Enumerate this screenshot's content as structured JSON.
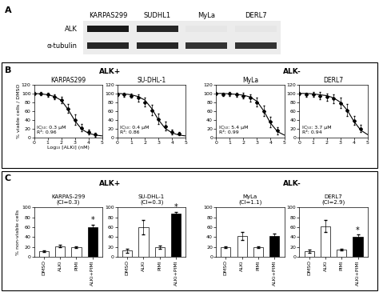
{
  "chart_data": [
    {
      "type": "scatter",
      "title": "KARPAS299",
      "x_label": "Log₁₀ [ALKi] (nM)",
      "y_label": "% viable cells / DMSO",
      "annotations": [
        "IC₅₀: 0.3 µM",
        "R²: 0.96"
      ],
      "xlim": [
        0,
        5
      ],
      "xticks": [
        0,
        1,
        2,
        3,
        4,
        5
      ],
      "ylim": [
        0,
        120
      ],
      "yticks": [
        0,
        20,
        40,
        60,
        80,
        100,
        120
      ],
      "series": [
        {
          "type": "scatter",
          "marker": "diamond",
          "color": "#000000",
          "x": [
            0,
            0.5,
            1,
            1.5,
            2,
            2.5,
            3,
            3.5,
            4,
            4.5
          ],
          "values": [
            100,
            100,
            97,
            92,
            85,
            65,
            40,
            22,
            12,
            6
          ],
          "errors": [
            3,
            4,
            4,
            6,
            8,
            10,
            12,
            8,
            6,
            5
          ]
        },
        {
          "type": "line",
          "color": "#000000",
          "x": [
            0,
            0.5,
            1,
            1.5,
            2,
            2.5,
            3,
            3.5,
            4,
            4.5,
            5
          ],
          "values": [
            100,
            99,
            97,
            93,
            84,
            63,
            37,
            18,
            9,
            5,
            3
          ]
        }
      ]
    },
    {
      "type": "scatter",
      "title": "SU-DHL-1",
      "annotations": [
        "IC₅₀: 0.4 µM",
        "R²: 0.86"
      ],
      "xlim": [
        0,
        5
      ],
      "xticks": [
        0,
        1,
        2,
        3,
        4,
        5
      ],
      "ylim": [
        0,
        120
      ],
      "yticks": [
        0,
        20,
        40,
        60,
        80,
        100,
        120
      ],
      "series": [
        {
          "type": "scatter",
          "marker": "diamond",
          "color": "#000000",
          "x": [
            0,
            0.5,
            1,
            1.5,
            2,
            2.5,
            3,
            3.5,
            4,
            4.5
          ],
          "values": [
            98,
            97,
            95,
            90,
            80,
            62,
            42,
            25,
            12,
            8
          ],
          "errors": [
            4,
            5,
            5,
            8,
            10,
            12,
            12,
            10,
            6,
            4
          ]
        },
        {
          "type": "line",
          "color": "#000000",
          "x": [
            0,
            0.5,
            1,
            1.5,
            2,
            2.5,
            3,
            3.5,
            4,
            4.5,
            5
          ],
          "values": [
            100,
            99,
            97,
            93,
            85,
            66,
            40,
            20,
            10,
            5,
            3
          ]
        }
      ]
    },
    {
      "type": "scatter",
      "title": "MyLa",
      "annotations": [
        "IC₅₀: 5.4 µM",
        "R²: 0.99"
      ],
      "xlim": [
        0,
        5
      ],
      "xticks": [
        0,
        1,
        2,
        3,
        4,
        5
      ],
      "ylim": [
        0,
        120
      ],
      "yticks": [
        0,
        20,
        40,
        60,
        80,
        100,
        120
      ],
      "series": [
        {
          "type": "scatter",
          "marker": "diamond",
          "color": "#000000",
          "x": [
            0,
            0.5,
            1,
            1.5,
            2,
            2.5,
            3,
            3.5,
            4,
            4.5
          ],
          "values": [
            100,
            98,
            99,
            97,
            95,
            90,
            80,
            60,
            35,
            15
          ],
          "errors": [
            3,
            4,
            4,
            5,
            6,
            8,
            10,
            12,
            12,
            8
          ]
        },
        {
          "type": "line",
          "color": "#000000",
          "x": [
            0,
            0.5,
            1,
            1.5,
            2,
            2.5,
            3,
            3.5,
            4,
            4.5,
            5
          ],
          "values": [
            100,
            100,
            99,
            98,
            96,
            92,
            82,
            60,
            32,
            13,
            5
          ]
        }
      ]
    },
    {
      "type": "scatter",
      "title": "DERL7",
      "annotations": [
        "IC₅₀: 3.7 µM",
        "R²: 0.94"
      ],
      "xlim": [
        0,
        5
      ],
      "xticks": [
        0,
        1,
        2,
        3,
        4,
        5
      ],
      "ylim": [
        0,
        120
      ],
      "yticks": [
        0,
        20,
        40,
        60,
        80,
        100,
        120
      ],
      "series": [
        {
          "type": "scatter",
          "marker": "diamond",
          "color": "#000000",
          "x": [
            0,
            0.5,
            1,
            1.5,
            2,
            2.5,
            3,
            3.5,
            4,
            4.5
          ],
          "values": [
            100,
            97,
            98,
            95,
            92,
            88,
            78,
            62,
            38,
            20
          ],
          "errors": [
            4,
            5,
            6,
            8,
            8,
            10,
            12,
            14,
            10,
            8
          ]
        },
        {
          "type": "line",
          "color": "#000000",
          "x": [
            0,
            0.5,
            1,
            1.5,
            2,
            2.5,
            3,
            3.5,
            4,
            4.5,
            5
          ],
          "values": [
            100,
            100,
            99,
            97,
            95,
            90,
            80,
            62,
            36,
            16,
            6
          ]
        }
      ]
    },
    {
      "type": "bar",
      "title": "KARPAS-299",
      "subtitle": "(CI=0.3)",
      "y_label": "% non-viable cells",
      "categories": [
        "DMSO",
        "ALKi",
        "PIMI",
        "ALKi+PIMI"
      ],
      "values": [
        12,
        22,
        20,
        60
      ],
      "errors": [
        2,
        2,
        2,
        5
      ],
      "colors": [
        "#ffffff",
        "#ffffff",
        "#ffffff",
        "#000000"
      ],
      "annotations": [
        {
          "category": "ALKi+PIMI",
          "text": "*"
        }
      ],
      "ylim": [
        0,
        100
      ],
      "yticks": [
        0,
        20,
        40,
        60,
        80,
        100
      ]
    },
    {
      "type": "bar",
      "title": "SU-DHL-1",
      "subtitle": "(CI=0.3)",
      "categories": [
        "DMSO",
        "ALKi",
        "PIMI",
        "ALKi+PIMI"
      ],
      "values": [
        13,
        60,
        20,
        88
      ],
      "errors": [
        4,
        15,
        3,
        3
      ],
      "colors": [
        "#ffffff",
        "#ffffff",
        "#ffffff",
        "#000000"
      ],
      "annotations": [
        {
          "category": "ALKi+PIMI",
          "text": "*"
        }
      ],
      "ylim": [
        0,
        100
      ],
      "yticks": [
        0,
        20,
        40,
        60,
        80,
        100
      ]
    },
    {
      "type": "bar",
      "title": "MyLa",
      "subtitle": "(CI=1.1)",
      "categories": [
        "DMSO",
        "ALKi",
        "PIMI",
        "ALKi+PIMI"
      ],
      "values": [
        20,
        42,
        20,
        42
      ],
      "errors": [
        2,
        8,
        2,
        5
      ],
      "colors": [
        "#ffffff",
        "#ffffff",
        "#ffffff",
        "#000000"
      ],
      "ylim": [
        0,
        100
      ],
      "yticks": [
        0,
        20,
        40,
        60,
        80,
        100
      ]
    },
    {
      "type": "bar",
      "title": "DERL7",
      "subtitle": "(CI=2.9)",
      "categories": [
        "DMSO",
        "ALKi",
        "PIMI",
        "ALKi+PIMI"
      ],
      "values": [
        12,
        62,
        15,
        40
      ],
      "errors": [
        3,
        12,
        2,
        5
      ],
      "colors": [
        "#ffffff",
        "#ffffff",
        "#ffffff",
        "#000000"
      ],
      "annotations": [
        {
          "category": "ALKi+PIMI",
          "text": "*"
        }
      ],
      "ylim": [
        0,
        100
      ],
      "yticks": [
        0,
        20,
        40,
        60,
        80,
        100
      ]
    }
  ],
  "panel_labels": [
    "A",
    "B",
    "C"
  ],
  "group_labels": {
    "B": [
      "ALK+",
      "ALK-"
    ],
    "C": [
      "ALK+",
      "ALK-"
    ]
  },
  "blot": {
    "lanes": [
      "KARPAS299",
      "SUDHL1",
      "MyLa",
      "DERL7"
    ],
    "rows": [
      {
        "label": "ALK",
        "intensity": [
          0.9,
          0.85,
          0.1,
          0.1
        ]
      },
      {
        "label": "α-tubulin",
        "intensity": [
          0.85,
          0.85,
          0.8,
          0.8
        ]
      }
    ]
  }
}
